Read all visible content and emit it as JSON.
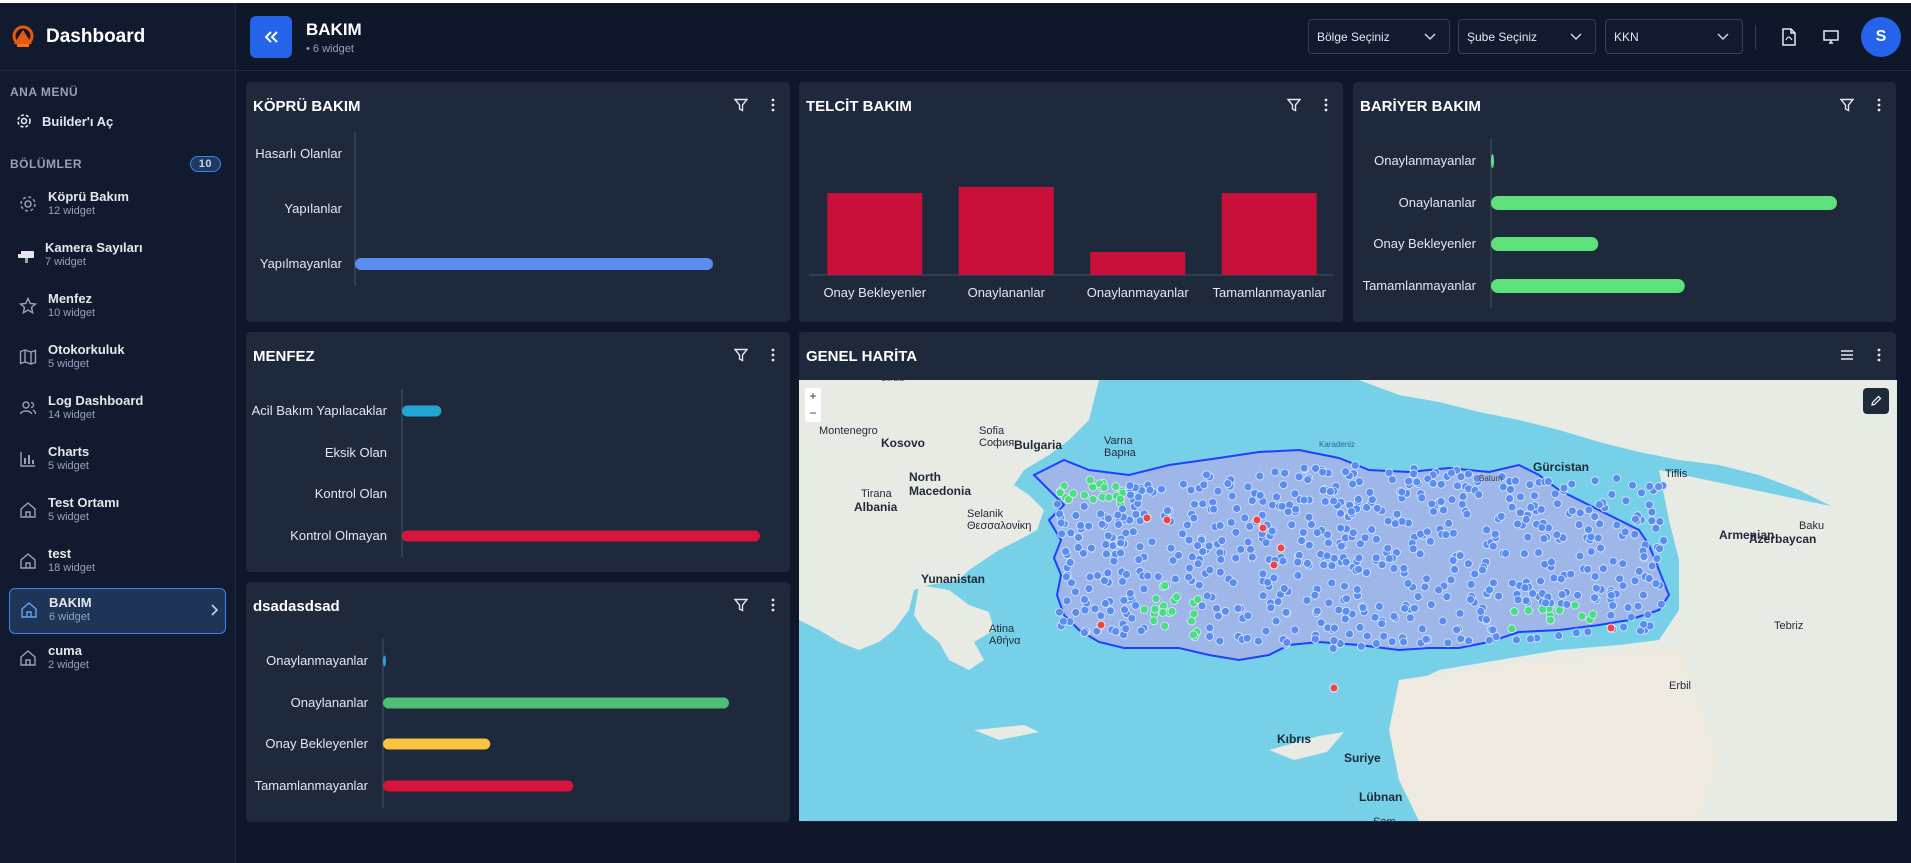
{
  "brand": {
    "title": "Dashboard"
  },
  "sidebar": {
    "menu_title": "ANA MENÜ",
    "builder_label": "Builder'ı Aç",
    "sections_title": "BÖLÜMLER",
    "sections_count": "10",
    "items": [
      {
        "name": "Köprü Bakım",
        "sub": "12 widget",
        "icon": "gear-icon"
      },
      {
        "name": "Kamera Sayıları",
        "sub": "7 widget",
        "icon": "camera-icon"
      },
      {
        "name": "Menfez",
        "sub": "10 widget",
        "icon": "star-icon"
      },
      {
        "name": "Otokorkuluk",
        "sub": "5 widget",
        "icon": "map-icon"
      },
      {
        "name": "Log Dashboard",
        "sub": "14 widget",
        "icon": "users-icon"
      },
      {
        "name": "Charts",
        "sub": "5 widget",
        "icon": "chart-icon"
      },
      {
        "name": "Test Ortamı",
        "sub": "5 widget",
        "icon": "home-icon"
      },
      {
        "name": "test",
        "sub": "18 widget",
        "icon": "home-icon"
      },
      {
        "name": "BAKIM",
        "sub": "6 widget",
        "icon": "home-icon"
      },
      {
        "name": "cuma",
        "sub": "2 widget",
        "icon": "home-icon"
      }
    ]
  },
  "header": {
    "title": "BAKIM",
    "subtitle": "• 6 widget",
    "region_select": "Bölge Seçiniz",
    "branch_select": "Şube Seçiniz",
    "kkn_select": "KKN",
    "avatar": "S",
    "accent": "#2563eb"
  },
  "widgets": {
    "kopru": {
      "title": "KÖPRÜ BAKIM"
    },
    "telcit": {
      "title": "TELCİT BAKIM"
    },
    "bariyer": {
      "title": "BARİYER BAKIM"
    },
    "menfez": {
      "title": "MENFEZ"
    },
    "dsad": {
      "title": "dsadasdsad"
    },
    "harita": {
      "title": "GENEL HARİTA"
    }
  },
  "chart_data": [
    {
      "id": "kopru",
      "type": "bar",
      "orientation": "horizontal",
      "categories": [
        "Hasarlı Olanlar",
        "Yapılanlar",
        "Yapılmayanlar"
      ],
      "values": [
        0,
        0,
        100
      ],
      "xlim": [
        0,
        100
      ],
      "colors": [
        "#5b8def",
        "#5b8def",
        "#5b8def"
      ]
    },
    {
      "id": "telcit",
      "type": "bar",
      "orientation": "vertical",
      "categories": [
        "Onay Bekleyenler",
        "Onaylananlar",
        "Onaylanmayanlar",
        "Tamamlanmayanlar"
      ],
      "values": [
        82,
        88,
        23,
        82
      ],
      "ylim": [
        0,
        100
      ],
      "colors": [
        "#c8103a",
        "#c8103a",
        "#c8103a",
        "#c8103a"
      ]
    },
    {
      "id": "bariyer",
      "type": "bar",
      "orientation": "horizontal",
      "categories": [
        "Onaylanmayanlar",
        "Onaylananlar",
        "Onay Bekleyenler",
        "Tamamlanmayanlar"
      ],
      "values": [
        0.5,
        100,
        31,
        56
      ],
      "xlim": [
        0,
        100
      ],
      "colors": [
        "#5ee07a",
        "#5ee07a",
        "#5ee07a",
        "#5ee07a"
      ]
    },
    {
      "id": "menfez",
      "type": "bar",
      "orientation": "horizontal",
      "categories": [
        "Acil Bakım Yapılacaklar",
        "Eksik Olan",
        "Kontrol Olan",
        "Kontrol Olmayan"
      ],
      "values": [
        11,
        0,
        0,
        100
      ],
      "xlim": [
        0,
        100
      ],
      "colors": [
        "#22a7d4",
        "#22a7d4",
        "#22a7d4",
        "#d7143c"
      ]
    },
    {
      "id": "dsad",
      "type": "bar",
      "orientation": "horizontal",
      "categories": [
        "Onaylanmayanlar",
        "Onaylananlar",
        "Onay Bekleyenler",
        "Tamamlanmayanlar"
      ],
      "values": [
        0.5,
        100,
        31,
        55
      ],
      "xlim": [
        0,
        100
      ],
      "colors": [
        "#22a7d4",
        "#4fbf76",
        "#f9c440",
        "#d7143c"
      ]
    }
  ],
  "map": {
    "labels": [
      {
        "t": "Serbia",
        "c": "s"
      },
      {
        "t": "Montenegro",
        "c": ""
      },
      {
        "t": "Kosovo",
        "c": "b"
      },
      {
        "t": "Sofia\nСофия",
        "c": ""
      },
      {
        "t": "Bulgaria",
        "c": "b"
      },
      {
        "t": "Varna\nВарна",
        "c": ""
      },
      {
        "t": "North\nMacedonia",
        "c": "b"
      },
      {
        "t": "Tirana",
        "c": ""
      },
      {
        "t": "Albania",
        "c": "b"
      },
      {
        "t": "Selanik\nΘεσσαλονίκη",
        "c": ""
      },
      {
        "t": "Yunanistan",
        "c": "b"
      },
      {
        "t": "Atina\nΑθήνα",
        "c": ""
      },
      {
        "t": "Gürcistan",
        "c": "b"
      },
      {
        "t": "Tiflis",
        "c": ""
      },
      {
        "t": "Armenian",
        "c": "b"
      },
      {
        "t": "Azerbaycan",
        "c": "b"
      },
      {
        "t": "Baku",
        "c": ""
      },
      {
        "t": "Tebriz",
        "c": ""
      },
      {
        "t": "Kıbrıs",
        "c": "b"
      },
      {
        "t": "Suriye",
        "c": "b"
      },
      {
        "t": "Lübnan",
        "c": "b"
      },
      {
        "t": "Erbil",
        "c": ""
      },
      {
        "t": "Şam",
        "c": ""
      },
      {
        "t": "Batum",
        "c": "s"
      },
      {
        "t": "Karadeniz",
        "c": "sea"
      }
    ]
  }
}
